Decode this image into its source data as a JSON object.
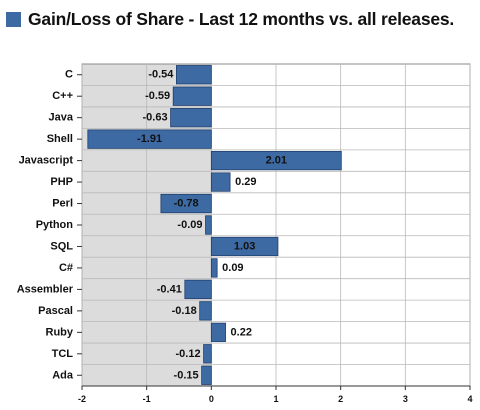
{
  "title": "Gain/Loss of Share - Last 12 months vs. all releases.",
  "colors": {
    "bar": "#3d6aa3",
    "bar_edge": "#1f3f6e",
    "panel_left": "#dcdcdc",
    "panel_right": "#ffffff",
    "grid": "#b9b9b9",
    "title_swatch": "#3d6aa3"
  },
  "chart_data": {
    "type": "bar",
    "orientation": "horizontal",
    "title": "Gain/Loss of Share - Last 12 months vs. all releases.",
    "categories": [
      "C",
      "C++",
      "Java",
      "Shell",
      "Javascript",
      "PHP",
      "Perl",
      "Python",
      "SQL",
      "C#",
      "Assembler",
      "Pascal",
      "Ruby",
      "TCL",
      "Ada"
    ],
    "values": [
      -0.54,
      -0.59,
      -0.63,
      -1.91,
      2.01,
      0.29,
      -0.78,
      -0.09,
      1.03,
      0.09,
      -0.41,
      -0.18,
      0.22,
      -0.12,
      -0.15
    ],
    "value_labels": [
      "-0.54",
      "-0.59",
      "-0.63",
      "-1.91",
      "2.01",
      "0.29",
      "-0.78",
      "-0.09",
      "1.03",
      "0.09",
      "-0.41",
      "-0.18",
      "0.22",
      "-0.12",
      "-0.15"
    ],
    "xlim": [
      -2,
      4
    ],
    "xticks": [
      -2,
      -1,
      0,
      1,
      2,
      3,
      4
    ],
    "xtick_labels": [
      "-2",
      "-1",
      "0",
      "1",
      "2",
      "3",
      "4"
    ],
    "grid": true,
    "legend": false
  }
}
